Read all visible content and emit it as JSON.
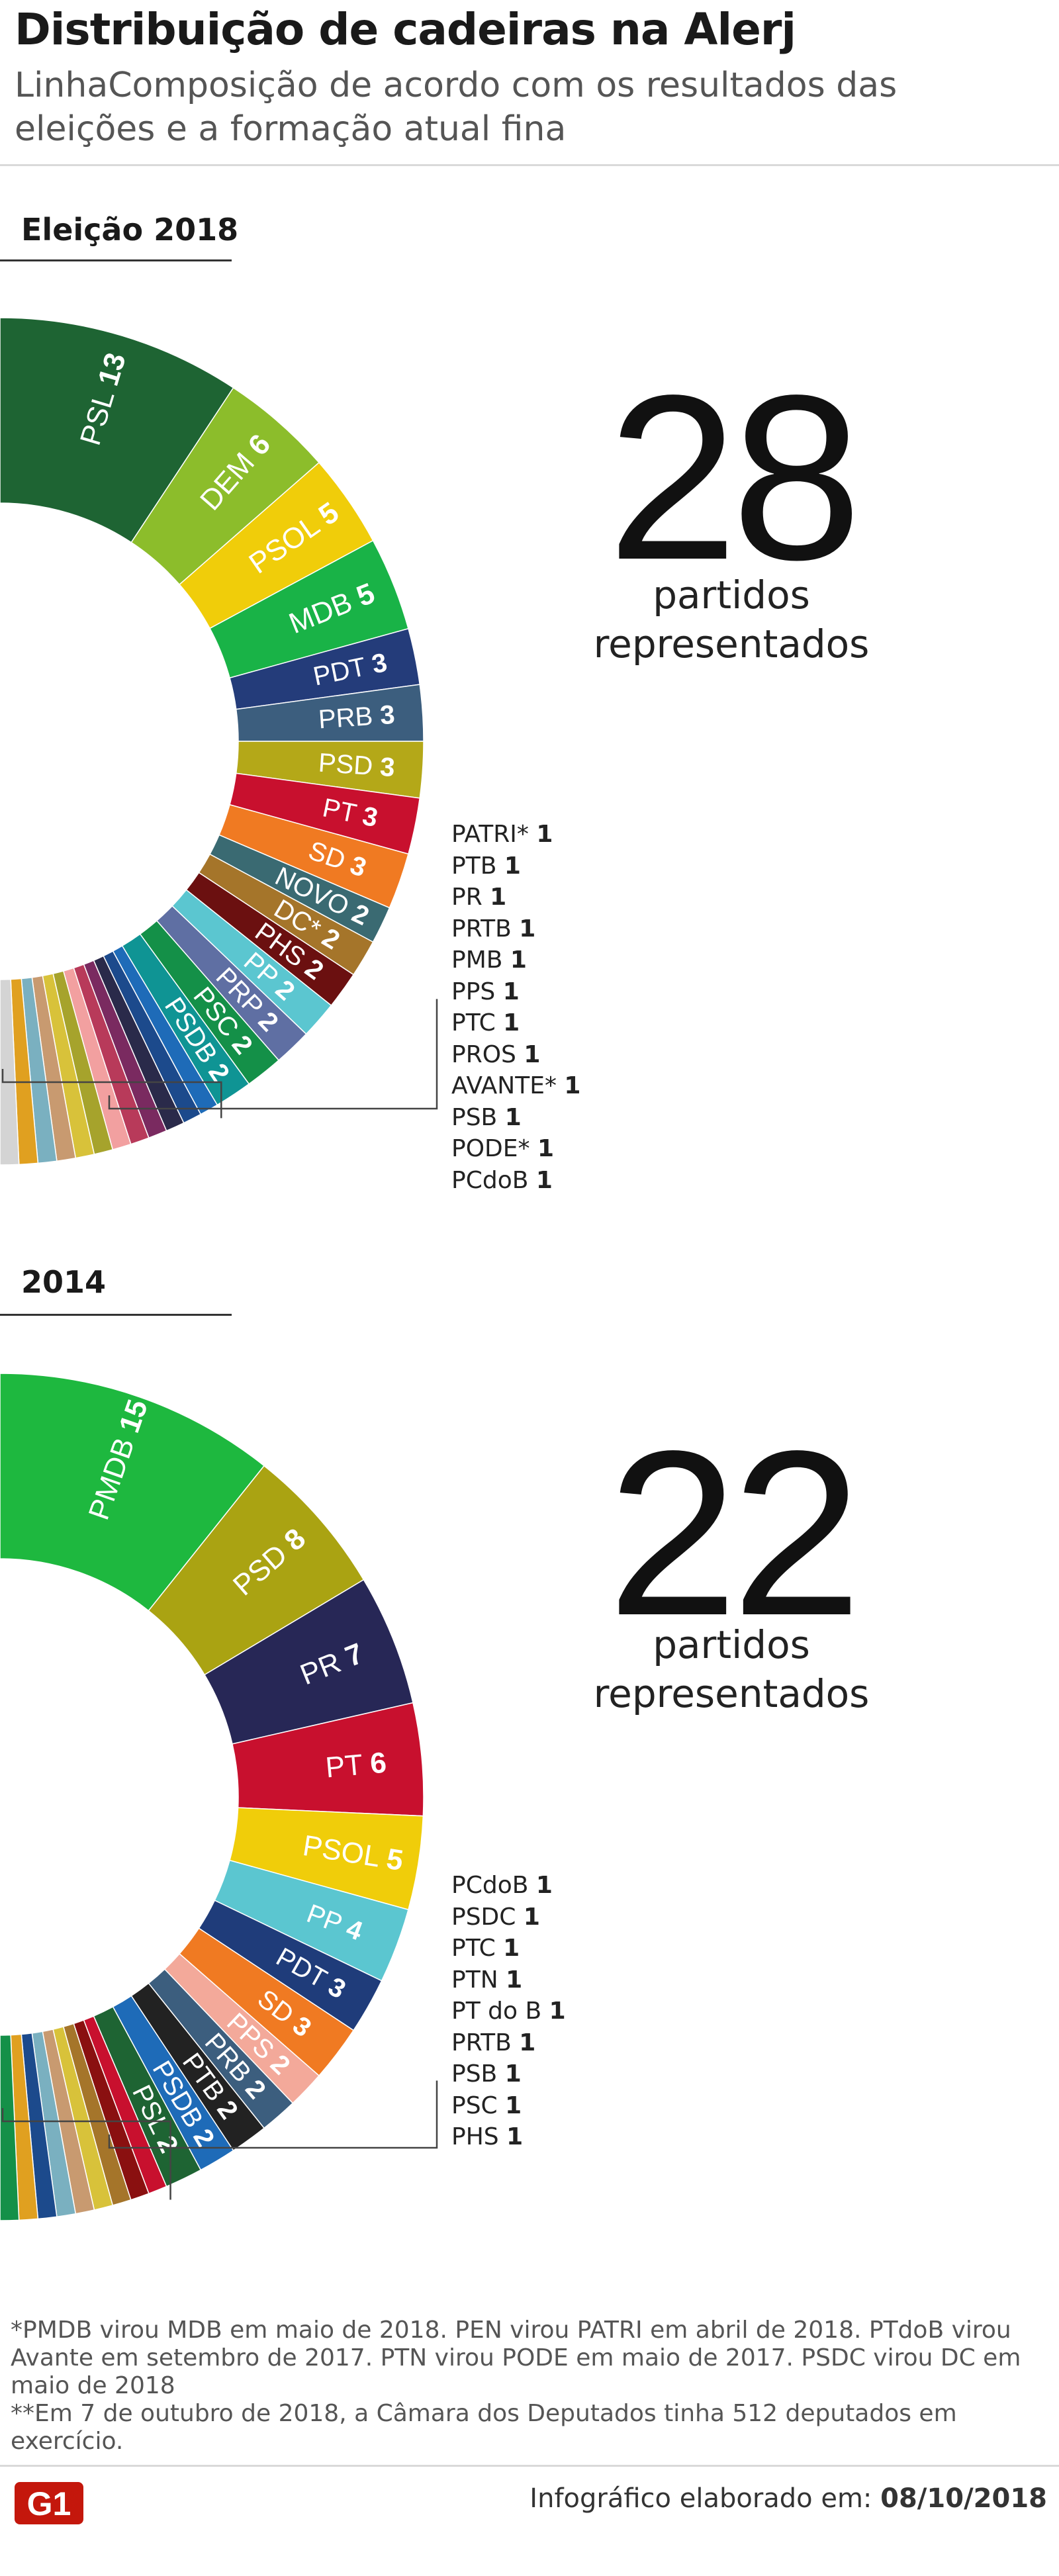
{
  "header": {
    "title": "Distribuição de cadeiras na Alerj",
    "subtitle": "LinhaComposição de acordo com os resultados das eleições e a formação atual fina"
  },
  "chart_data": [
    {
      "type": "donut",
      "title": "Eleição 2018",
      "big_number": "28",
      "big_caption_line1": "partidos",
      "big_caption_line2": "representados",
      "labeled": [
        {
          "name": "PSL",
          "value": 13,
          "color": "#1e6433"
        },
        {
          "name": "DEM",
          "value": 6,
          "color": "#8cbd2b"
        },
        {
          "name": "PSOL",
          "value": 5,
          "color": "#f0cd0a"
        },
        {
          "name": "MDB",
          "value": 5,
          "color": "#19b347"
        },
        {
          "name": "PDT",
          "value": 3,
          "color": "#243c7a"
        },
        {
          "name": "PRB",
          "value": 3,
          "color": "#3c5e7e"
        },
        {
          "name": "PSD",
          "value": 3,
          "color": "#b4a818"
        },
        {
          "name": "PT",
          "value": 3,
          "color": "#c8102e"
        },
        {
          "name": "SD",
          "value": 3,
          "color": "#f07a22"
        },
        {
          "name": "NOVO",
          "value": 2,
          "color": "#3a6a72"
        },
        {
          "name": "DC*",
          "value": 2,
          "color": "#a5752a"
        },
        {
          "name": "PHS",
          "value": 2,
          "color": "#6b1010"
        },
        {
          "name": "PP",
          "value": 2,
          "color": "#5bc6d0"
        },
        {
          "name": "PRP",
          "value": 2,
          "color": "#5f6fa3"
        },
        {
          "name": "PSC",
          "value": 2,
          "color": "#149048"
        },
        {
          "name": "PSDB",
          "value": 2,
          "color": "#0f9494"
        }
      ],
      "small_colors": [
        "#1e6bb8",
        "#1c4a8c",
        "#2a2a4a",
        "#7a2a60",
        "#b83a5a",
        "#f2a0a0",
        "#a6a32c",
        "#d8c23a",
        "#c89a70",
        "#7ab0c0",
        "#e0a020",
        "#d4d4d4",
        "#8a1010"
      ],
      "small": [
        {
          "name": "PATRI*",
          "value": 1
        },
        {
          "name": "PTB",
          "value": 1
        },
        {
          "name": "PR",
          "value": 1
        },
        {
          "name": "PRTB",
          "value": 1
        },
        {
          "name": "PMB",
          "value": 1
        },
        {
          "name": "PPS",
          "value": 1
        },
        {
          "name": "PTC",
          "value": 1
        },
        {
          "name": "PROS",
          "value": 1
        },
        {
          "name": "AVANTE*",
          "value": 1
        },
        {
          "name": "PSB",
          "value": 1
        },
        {
          "name": "PODE*",
          "value": 1
        },
        {
          "name": "PCdoB",
          "value": 1
        }
      ]
    },
    {
      "type": "donut",
      "title": "2014",
      "big_number": "22",
      "big_caption_line1": "partidos",
      "big_caption_line2": "representados",
      "labeled": [
        {
          "name": "PMDB",
          "value": 15,
          "color": "#1eb83f"
        },
        {
          "name": "PSD",
          "value": 8,
          "color": "#aaa312"
        },
        {
          "name": "PR",
          "value": 7,
          "color": "#272756"
        },
        {
          "name": "PT",
          "value": 6,
          "color": "#c8102e"
        },
        {
          "name": "PSOL",
          "value": 5,
          "color": "#f0cd0a"
        },
        {
          "name": "PP",
          "value": 4,
          "color": "#5bc6d0"
        },
        {
          "name": "PDT",
          "value": 3,
          "color": "#1f3c7a"
        },
        {
          "name": "SD",
          "value": 3,
          "color": "#f07a22"
        },
        {
          "name": "PPS",
          "value": 2,
          "color": "#f3a99a"
        },
        {
          "name": "PRB",
          "value": 2,
          "color": "#3c5e7e"
        },
        {
          "name": "PTB",
          "value": 2,
          "color": "#222222"
        },
        {
          "name": "PSDB",
          "value": 2,
          "color": "#1e6bb8"
        },
        {
          "name": "PSL",
          "value": 2,
          "color": "#1e6433"
        }
      ],
      "small_colors": [
        "#c8102e",
        "#8a1010",
        "#a5752a",
        "#d8c23a",
        "#c89a70",
        "#7ab0c0",
        "#1c4a8c",
        "#e0a020",
        "#149048",
        "#8a1010"
      ],
      "small": [
        {
          "name": "PCdoB",
          "value": 1
        },
        {
          "name": "PSDC",
          "value": 1
        },
        {
          "name": "PTC",
          "value": 1
        },
        {
          "name": "PTN",
          "value": 1
        },
        {
          "name": "PT do B",
          "value": 1
        },
        {
          "name": "PRTB",
          "value": 1
        },
        {
          "name": "PSB",
          "value": 1
        },
        {
          "name": "PSC",
          "value": 1
        },
        {
          "name": "PHS",
          "value": 1
        }
      ]
    }
  ],
  "footnote": {
    "line1": "*PMDB virou MDB em maio de 2018. PEN virou PATRI em abril de 2018. PTdoB virou Avante em setembro de 2017. PTN virou PODE em maio de 2017. PSDC virou DC em maio de 2018",
    "line2": "**Em 7 de outubro de 2018, a Câmara dos Deputados tinha 512 deputados em exercício."
  },
  "footer": {
    "logo_text": "G1",
    "credit_label": "Infográfico elaborado em:",
    "credit_date": "08/10/2018"
  },
  "colors": {
    "logo_red": "#c4170c",
    "label_text": "#ffffff"
  }
}
